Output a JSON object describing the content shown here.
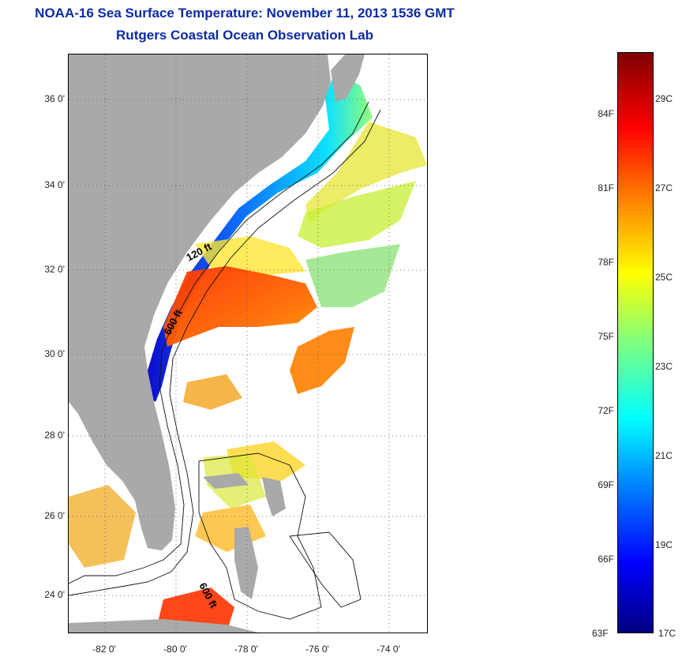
{
  "header": {
    "title": "NOAA-16 Sea Surface Temperature:  November 11, 2013 1536 GMT",
    "subtitle": "Rutgers Coastal Ocean Observation Lab"
  },
  "map": {
    "y_axis_labels": [
      "36 0'",
      "34 0'",
      "32 0'",
      "30 0'",
      "28 0'",
      "26 0'",
      "24 0'"
    ],
    "x_axis_labels": [
      "-82 0'",
      "-80 0'",
      "-78 0'",
      "-76 0'",
      "-74 0'"
    ],
    "contour_labels": {
      "shelf_120": "120 ft",
      "shelf_600_north": "600 ft",
      "shelf_600_south": "600 ft"
    },
    "colors": {
      "land": "#a9a9a9",
      "ocean_nodata": "#ffffff",
      "grid": "#555555"
    }
  },
  "colorbar": {
    "fahrenheit_labels": [
      "84F",
      "81F",
      "78F",
      "75F",
      "72F",
      "69F",
      "66F",
      "63F"
    ],
    "celsius_labels": [
      "29C",
      "27C",
      "25C",
      "23C",
      "21C",
      "19C",
      "17C"
    ],
    "min_f": "63F",
    "min_c": "17C"
  }
}
